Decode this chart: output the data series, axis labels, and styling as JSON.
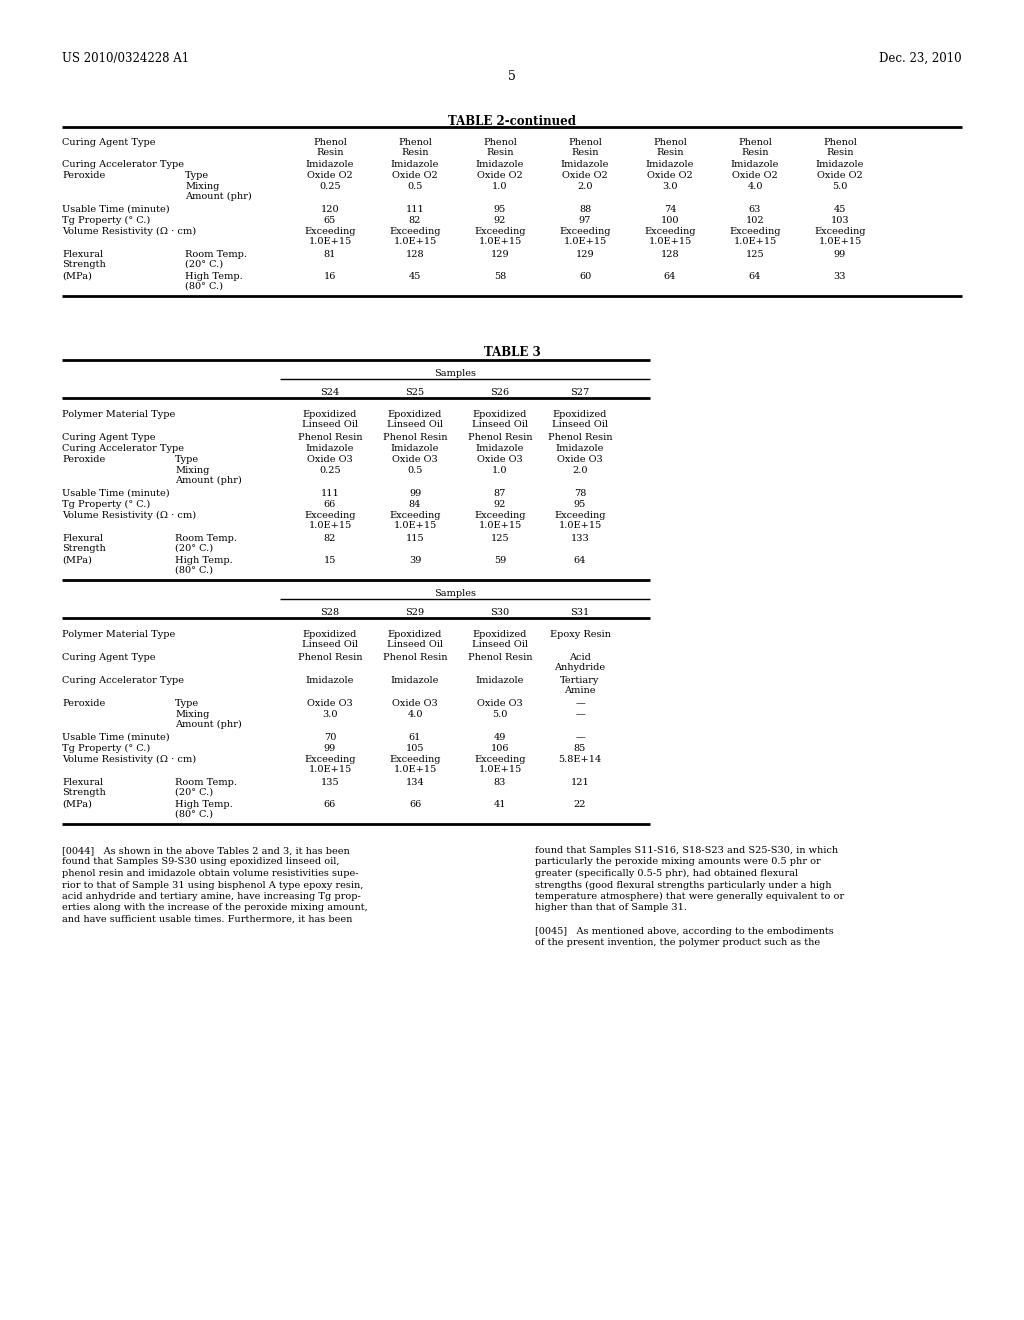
{
  "header_left": "US 2010/0324228 A1",
  "header_right": "Dec. 23, 2010",
  "page_num": "5",
  "bg_color": "#ffffff",
  "text_color": "#000000",
  "font_size": 7.0,
  "table2_continued_title": "TABLE 2-continued",
  "table3_title": "TABLE 3",
  "table2c_peroxide_mix": [
    "0.25",
    "0.5",
    "1.0",
    "2.0",
    "3.0",
    "4.0",
    "5.0"
  ],
  "table2c_usable": [
    "120",
    "111",
    "95",
    "88",
    "74",
    "63",
    "45"
  ],
  "table2c_tg": [
    "65",
    "82",
    "92",
    "97",
    "100",
    "102",
    "103"
  ],
  "table2c_flex_room": [
    "81",
    "128",
    "129",
    "129",
    "128",
    "125",
    "99"
  ],
  "table2c_flex_high": [
    "16",
    "45",
    "58",
    "60",
    "64",
    "64",
    "33"
  ],
  "table3_s1_samples": [
    "S24",
    "S25",
    "S26",
    "S27"
  ],
  "table3_s1_per_mix": [
    "0.25",
    "0.5",
    "1.0",
    "2.0"
  ],
  "table3_s1_usable": [
    "111",
    "99",
    "87",
    "78"
  ],
  "table3_s1_tg": [
    "66",
    "84",
    "92",
    "95"
  ],
  "table3_s1_flex_room": [
    "82",
    "115",
    "125",
    "133"
  ],
  "table3_s1_flex_high": [
    "15",
    "39",
    "59",
    "64"
  ],
  "table3_s2_samples": [
    "S28",
    "S29",
    "S30",
    "S31"
  ],
  "table3_s2_per_type": [
    "Oxide O3",
    "Oxide O3",
    "Oxide O3",
    "—"
  ],
  "table3_s2_per_mix": [
    "3.0",
    "4.0",
    "5.0",
    "—"
  ],
  "table3_s2_usable": [
    "70",
    "61",
    "49",
    "—"
  ],
  "table3_s2_tg": [
    "99",
    "105",
    "106",
    "85"
  ],
  "table3_s2_vol_top": [
    "Exceeding",
    "Exceeding",
    "Exceeding",
    "5.8E+14"
  ],
  "table3_s2_vol_bot": [
    "1.0E+15",
    "1.0E+15",
    "1.0E+15",
    ""
  ],
  "table3_s2_flex_room": [
    "135",
    "134",
    "83",
    "121"
  ],
  "table3_s2_flex_high": [
    "66",
    "66",
    "41",
    "22"
  ],
  "para44_left": "[0044]   As shown in the above Tables 2 and 3, it has been found that Samples S9-S30 using epoxidized linseed oil, phenol resin and imidazole obtain volume resistivities supe- rior to that of Sample 31 using bisphenol A type epoxy resin, acid anhydride and tertiary amine, have increasing Tg prop- erties along with the increase of the peroxide mixing amount, and have sufficient usable times. Furthermore, it has been",
  "para44_right": "found that Samples S11-S16, S18-S23 and S25-S30, in which particularly the peroxide mixing amounts were 0.5 phr or greater (specifically 0.5-5 phr), had obtained flexural strengths (good flexural strengths particularly under a high temperature atmosphere) that were generally equivalent to or higher than that of Sample 31.",
  "para45_right": "[0045]   As mentioned above, according to the embodiments of the present invention, the polymer product such as the"
}
